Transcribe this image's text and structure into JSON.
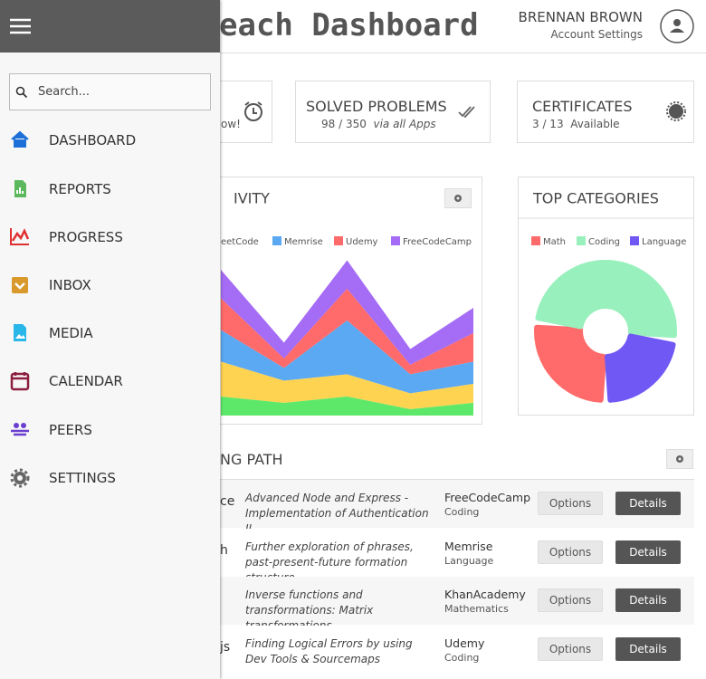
{
  "header": {
    "title": "each Dashboard",
    "user_name": "BRENNAN BROWN",
    "account_link": "Account Settings"
  },
  "sidebar": {
    "search_placeholder": "Search...",
    "menu": [
      "DASHBOARD",
      "REPORTS",
      "PROGRESS",
      "INBOX",
      "MEDIA",
      "CALENDAR",
      "PEERS",
      "SETTINGS"
    ]
  },
  "stat_cards": [
    {
      "text": "ow!"
    },
    {
      "title": "SOLVED PROBLEMS",
      "detail": "98 / 350",
      "detail_note": "via all Apps"
    },
    {
      "title": "CERTIFICATES",
      "detail": "3 / 13  Available"
    }
  ],
  "activity_chart": {
    "type": "area",
    "title": "IVITY",
    "stacked": true,
    "categories": [
      null,
      null,
      null,
      null,
      null
    ],
    "ylim": [
      0,
      50
    ],
    "series": [
      {
        "color": "#5ee86a",
        "values": [
          6,
          4,
          6,
          2,
          4
        ]
      },
      {
        "name": "eetCode",
        "color": "#ffd352",
        "values": [
          11,
          7,
          7,
          5,
          6
        ]
      },
      {
        "name": "Memrise",
        "color": "#5aa9f2",
        "values": [
          10,
          4,
          17,
          6,
          7
        ]
      },
      {
        "name": "Udemy",
        "color": "#ff6b6b",
        "values": [
          10,
          3,
          10,
          3,
          9
        ]
      },
      {
        "name": "FreeCodeCamp",
        "color": "#a56cf5",
        "values": [
          9,
          5,
          9,
          5,
          8
        ]
      }
    ]
  },
  "categories_chart": {
    "type": "doughnut",
    "title": "TOP CATEGORIES",
    "categories": [
      "Math",
      "Coding",
      "Language"
    ],
    "values": [
      27,
      50,
      23
    ],
    "colors": [
      "#ff6b6b",
      "#98f0bd",
      "#7058f5"
    ]
  },
  "learning_path": {
    "title": "NG PATH",
    "rows": [
      {
        "topic": "ce",
        "description": "Advanced Node and Express - Implementation of  Authentication II",
        "source": "FreeCodeCamp",
        "subject": "Coding",
        "options": "Options",
        "details": "Details"
      },
      {
        "topic": "h",
        "description": "Further exploration of phrases, past-present-future formation structure.",
        "source": "Memrise",
        "subject": "Language",
        "options": "Options",
        "details": "Details"
      },
      {
        "description": "Inverse functions and transformations: Matrix transformations",
        "source": "KhanAcademy",
        "subject": "Mathematics",
        "options": "Options",
        "details": "Details"
      },
      {
        "topic": "js",
        "description": "Finding Logical Errors by using Dev Tools & Sourcemaps",
        "source": "Udemy",
        "subject": "Coding",
        "options": "Options",
        "details": "Details"
      }
    ]
  }
}
